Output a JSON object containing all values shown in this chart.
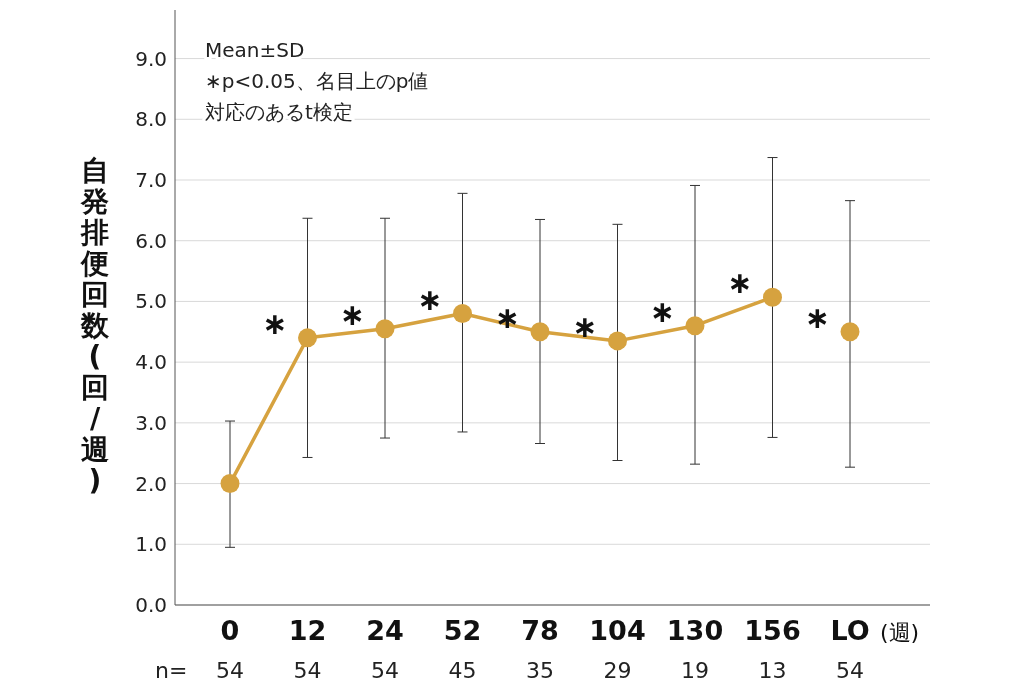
{
  "chart_data": {
    "type": "line",
    "ylabel": "自発排便回数(回/週)",
    "categories": [
      "0",
      "12",
      "24",
      "52",
      "78",
      "104",
      "130",
      "156",
      "LO"
    ],
    "series": [
      {
        "color": "#d6a23f",
        "values": [
          2.0,
          4.4,
          4.55,
          4.8,
          4.5,
          4.35,
          4.6,
          5.07,
          null
        ],
        "errors": [
          [
            0.95,
            3.03
          ],
          [
            2.43,
            6.37
          ],
          [
            2.75,
            6.37
          ],
          [
            2.85,
            6.78
          ],
          [
            2.66,
            6.35
          ],
          [
            2.38,
            6.27
          ],
          [
            2.32,
            6.91
          ],
          [
            2.76,
            7.37
          ],
          null
        ]
      },
      {
        "type": "scatter",
        "color": "#d6a23f",
        "values": [
          null,
          null,
          null,
          null,
          null,
          null,
          null,
          null,
          4.5
        ],
        "errors": [
          null,
          null,
          null,
          null,
          null,
          null,
          null,
          null,
          [
            2.27,
            6.66
          ]
        ]
      }
    ],
    "ylim": [
      0,
      9.8
    ],
    "yticks": [
      {
        "value": 0,
        "label": "0.0"
      },
      {
        "value": 1,
        "label": "1.0"
      },
      {
        "value": 2,
        "label": "2.0"
      },
      {
        "value": 3,
        "label": "3.0"
      },
      {
        "value": 4,
        "label": "4.0"
      },
      {
        "value": 5,
        "label": "5.0"
      },
      {
        "value": 6,
        "label": "6.0"
      },
      {
        "value": 7,
        "label": "7.0"
      },
      {
        "value": 8,
        "label": "8.0"
      },
      {
        "value": 9,
        "label": "9.0"
      }
    ],
    "grid": "y",
    "marker": "circle",
    "line_style": "solid",
    "annotations": [
      "Mean±SD",
      "∗p<0.05、名目上のp値",
      "対応のあるt検定",
      "(週)",
      "n=",
      "54",
      "54",
      "54",
      "45",
      "35",
      "29",
      "19",
      "13",
      "54",
      {
        "text": "∗",
        "x": "12",
        "y": 4.4
      },
      {
        "text": "∗",
        "x": "24",
        "y": 4.55
      },
      {
        "text": "∗",
        "x": "52",
        "y": 4.8
      },
      {
        "text": "∗",
        "x": "78",
        "y": 4.5
      },
      {
        "text": "∗",
        "x": "104",
        "y": 4.35
      },
      {
        "text": "∗",
        "x": "130",
        "y": 4.6
      },
      {
        "text": "∗",
        "x": "156",
        "y": 5.07
      },
      {
        "text": "∗",
        "x": "LO",
        "y": 4.5
      }
    ]
  }
}
